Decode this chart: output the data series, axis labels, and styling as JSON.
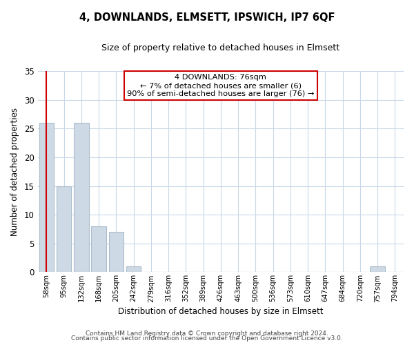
{
  "title": "4, DOWNLANDS, ELMSETT, IPSWICH, IP7 6QF",
  "subtitle": "Size of property relative to detached houses in Elmsett",
  "xlabel": "Distribution of detached houses by size in Elmsett",
  "ylabel": "Number of detached properties",
  "bar_labels": [
    "58sqm",
    "95sqm",
    "132sqm",
    "168sqm",
    "205sqm",
    "242sqm",
    "279sqm",
    "316sqm",
    "352sqm",
    "389sqm",
    "426sqm",
    "463sqm",
    "500sqm",
    "536sqm",
    "573sqm",
    "610sqm",
    "647sqm",
    "684sqm",
    "720sqm",
    "757sqm",
    "794sqm"
  ],
  "bar_values": [
    26,
    15,
    26,
    8,
    7,
    1,
    0,
    0,
    0,
    0,
    0,
    0,
    0,
    0,
    0,
    0,
    0,
    0,
    0,
    1,
    0
  ],
  "bar_color": "#cdd9e5",
  "bar_edge_color": "#aabdcc",
  "ylim": [
    0,
    35
  ],
  "yticks": [
    0,
    5,
    10,
    15,
    20,
    25,
    30,
    35
  ],
  "annotation_line_color": "#cc0000",
  "annotation_text_line1": "4 DOWNLANDS: 76sqm",
  "annotation_text_line2": "← 7% of detached houses are smaller (6)",
  "annotation_text_line3": "90% of semi-detached houses are larger (76) →",
  "footer_line1": "Contains HM Land Registry data © Crown copyright and database right 2024.",
  "footer_line2": "Contains public sector information licensed under the Open Government Licence v3.0.",
  "background_color": "#ffffff",
  "grid_color": "#c8d8e8",
  "red_line_x": 0.49
}
